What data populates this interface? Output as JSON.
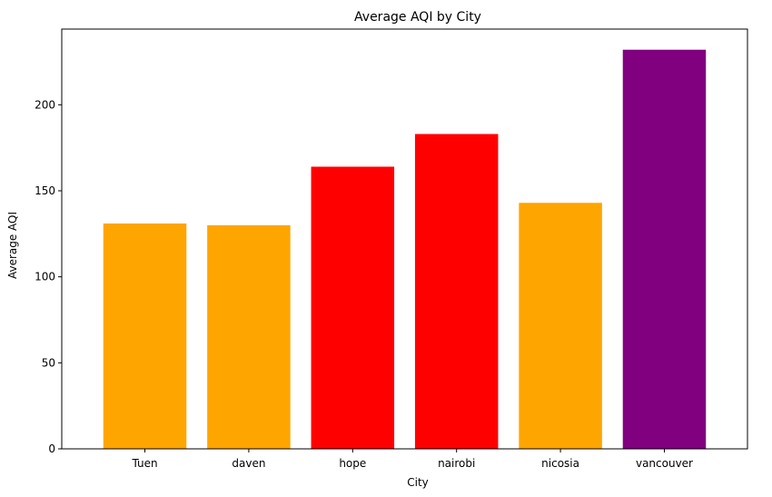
{
  "chart_data": {
    "type": "bar",
    "title": "Average AQI by City",
    "xlabel": "City",
    "ylabel": "Average AQI",
    "categories": [
      "Tuen",
      "daven",
      "hope",
      "nairobi",
      "nicosia",
      "vancouver"
    ],
    "values": [
      131,
      130,
      164,
      183,
      143,
      232
    ],
    "colors": [
      "#ffa500",
      "#ffa500",
      "#ff0000",
      "#ff0000",
      "#ffa500",
      "#800080"
    ],
    "ylim": [
      0,
      244
    ],
    "yticks": [
      0,
      50,
      100,
      150,
      200
    ],
    "grid": false,
    "legend": "none"
  }
}
